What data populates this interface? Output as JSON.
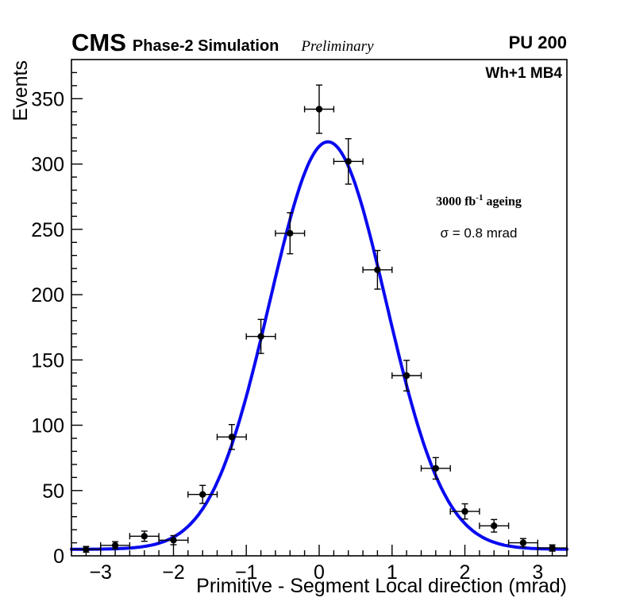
{
  "header": {
    "experiment": "CMS",
    "label": "Phase-2 Simulation",
    "preliminary": "Preliminary",
    "pileup": "PU 200"
  },
  "plot": {
    "region_label": "Wh+1 MB4",
    "lumi_prefix": "3000 fb",
    "lumi_sup": "-1",
    "lumi_suffix": " ageing",
    "sigma_label": "σ = 0.8 mrad"
  },
  "chart_data": {
    "type": "scatter",
    "title": "",
    "xlabel": "Primitive - Segment Local direction (mrad)",
    "ylabel": "Events",
    "xlim": [
      -3.4,
      3.4
    ],
    "ylim": [
      0,
      380
    ],
    "x_major_ticks": [
      -3,
      -2,
      -1,
      0,
      1,
      2,
      3
    ],
    "x_minor_step": 0.2,
    "y_major_ticks": [
      0,
      50,
      100,
      150,
      200,
      250,
      300,
      350
    ],
    "y_minor_step": 10,
    "grid": false,
    "legend": "none",
    "marker_color": "#000000",
    "fit_color": "#0a0af0",
    "x_err": 0.2,
    "points": [
      {
        "x": -3.2,
        "y": 5,
        "ey": 2.2
      },
      {
        "x": -2.8,
        "y": 8,
        "ey": 2.8
      },
      {
        "x": -2.4,
        "y": 15,
        "ey": 3.9
      },
      {
        "x": -2.0,
        "y": 12,
        "ey": 3.5
      },
      {
        "x": -1.6,
        "y": 47,
        "ey": 6.9
      },
      {
        "x": -1.2,
        "y": 91,
        "ey": 9.5
      },
      {
        "x": -0.8,
        "y": 168,
        "ey": 13.0
      },
      {
        "x": -0.4,
        "y": 247,
        "ey": 15.7
      },
      {
        "x": 0.0,
        "y": 342,
        "ey": 18.5
      },
      {
        "x": 0.4,
        "y": 302,
        "ey": 17.4
      },
      {
        "x": 0.8,
        "y": 219,
        "ey": 14.8
      },
      {
        "x": 1.2,
        "y": 138,
        "ey": 11.7
      },
      {
        "x": 1.6,
        "y": 67,
        "ey": 8.2
      },
      {
        "x": 2.0,
        "y": 34,
        "ey": 5.8
      },
      {
        "x": 2.4,
        "y": 23,
        "ey": 4.8
      },
      {
        "x": 2.8,
        "y": 10,
        "ey": 3.2
      },
      {
        "x": 3.2,
        "y": 6,
        "ey": 2.4
      }
    ],
    "fit": {
      "type": "gaussian",
      "amplitude": 312,
      "mean": 0.12,
      "sigma": 0.8,
      "baseline": 5
    }
  }
}
